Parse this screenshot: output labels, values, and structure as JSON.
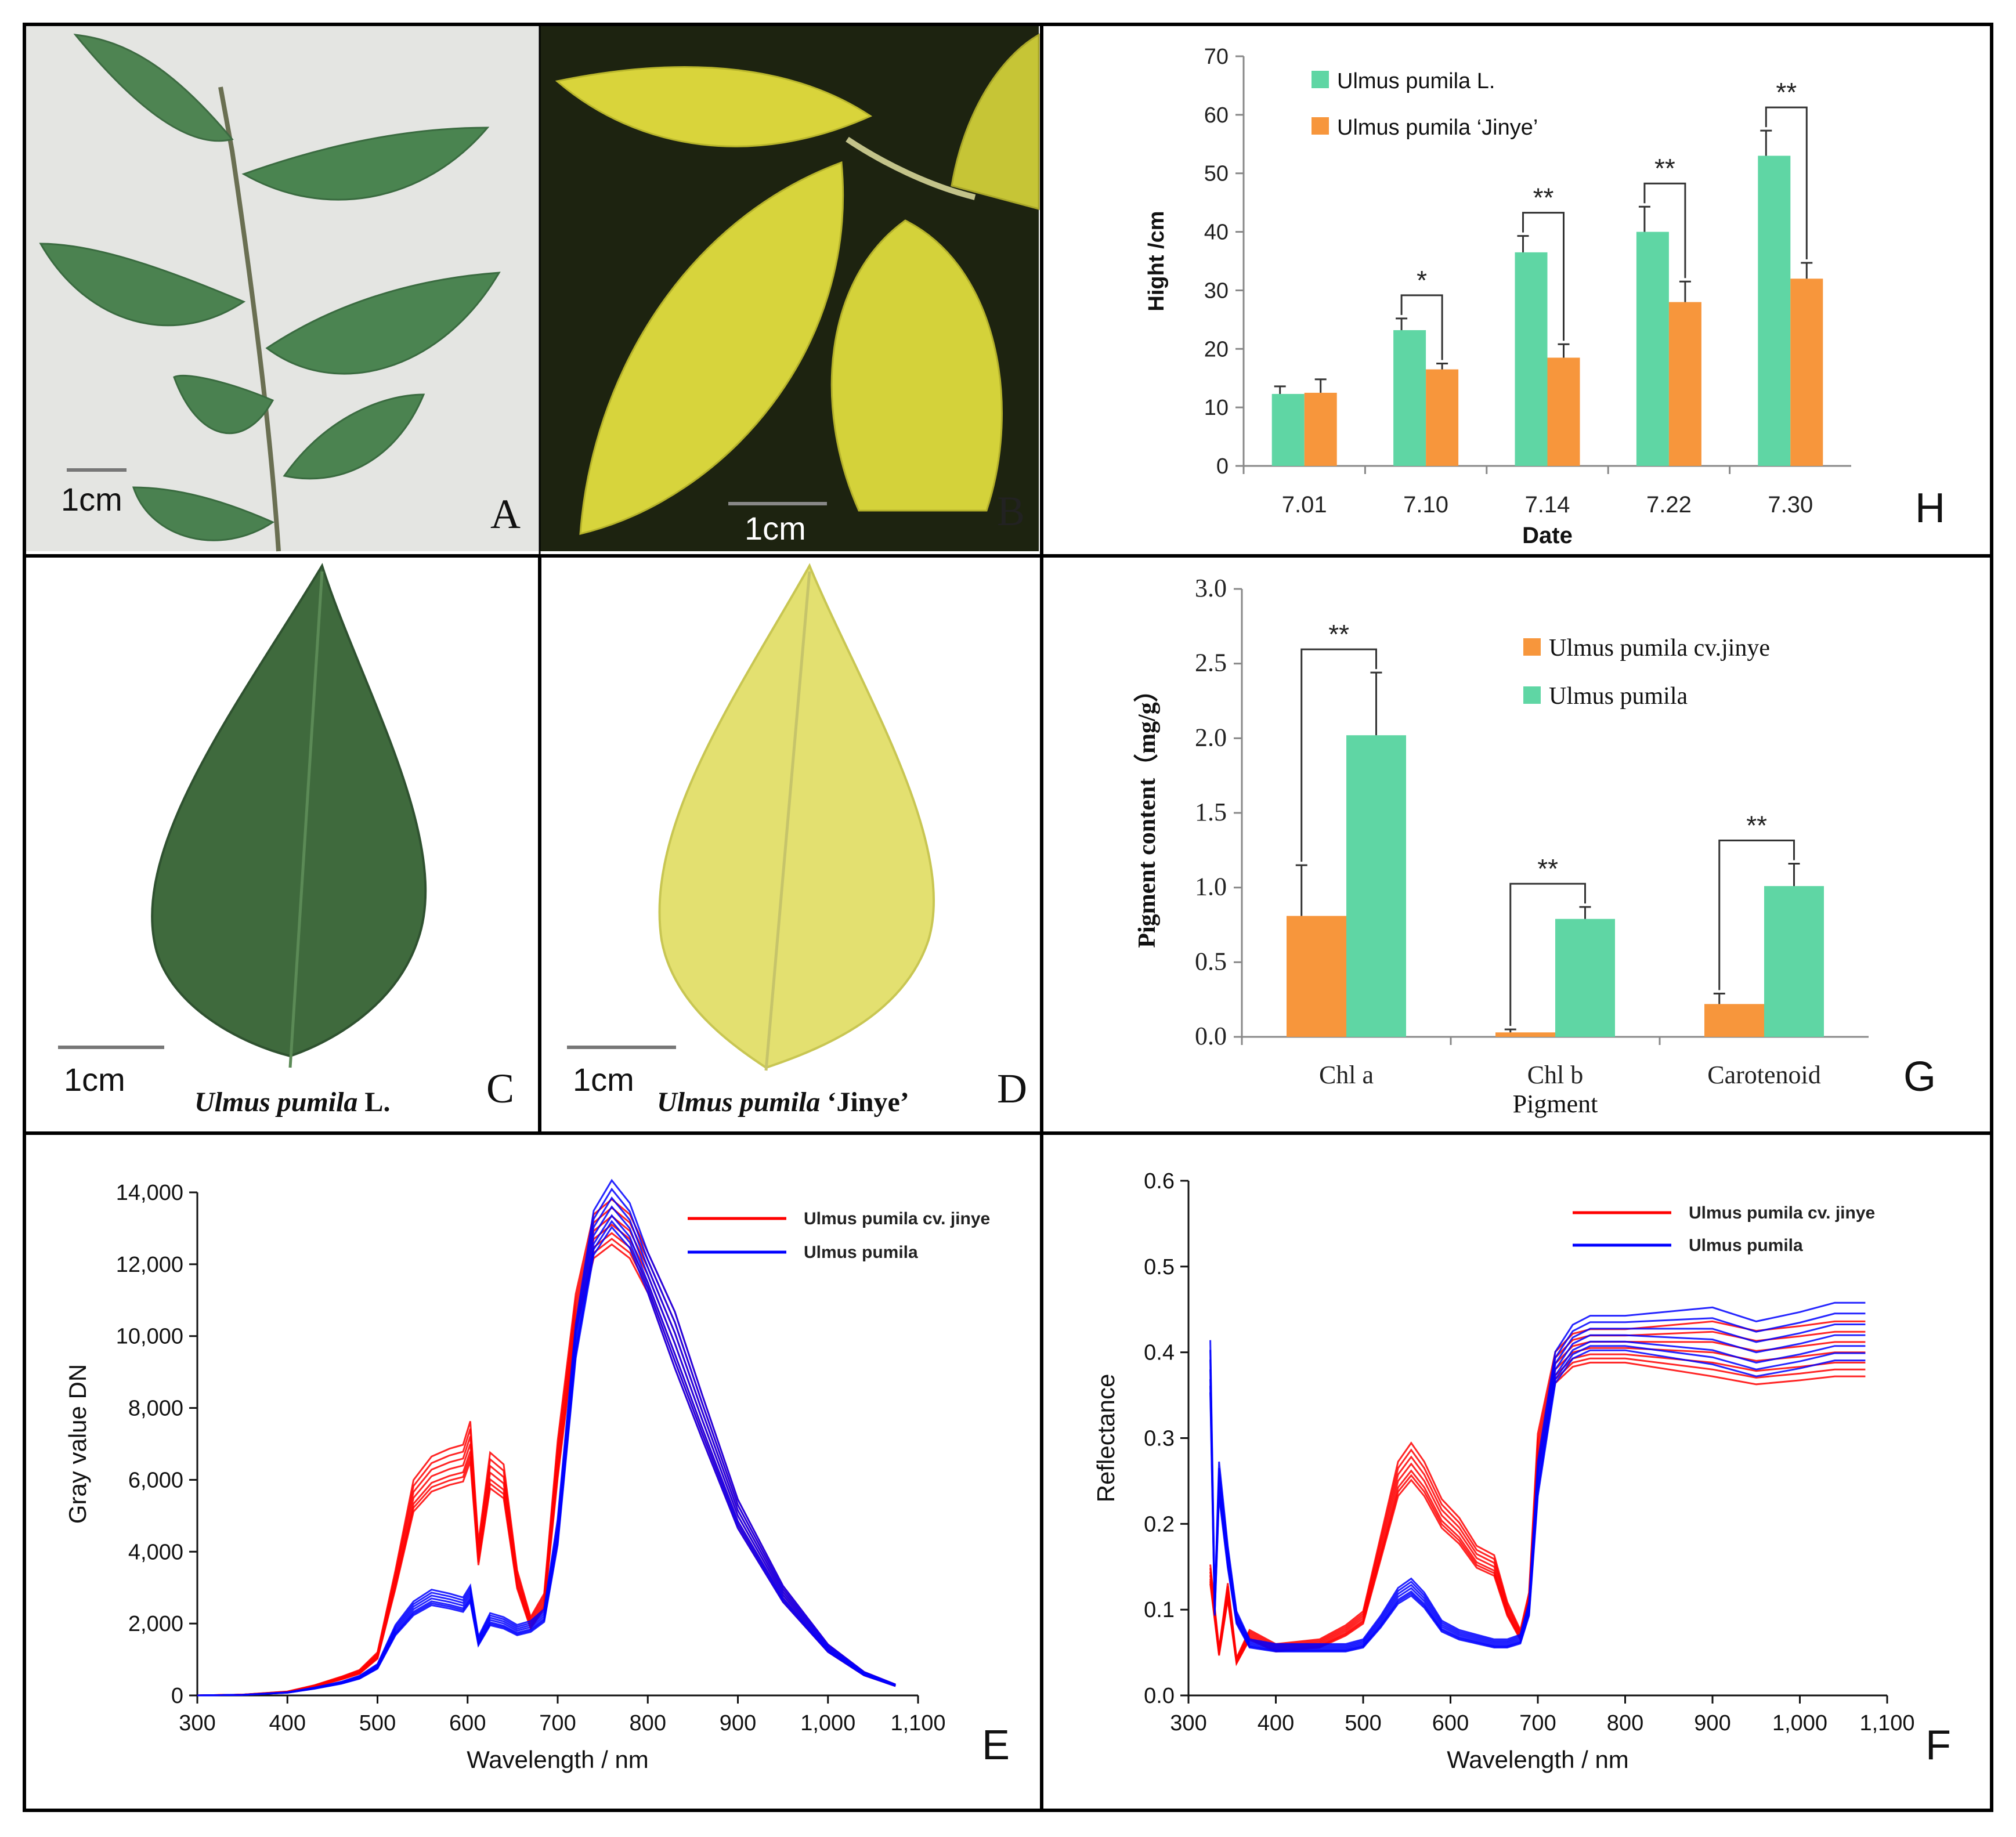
{
  "figure": {
    "panels": {
      "A": {
        "letter": "A",
        "scale": "1cm"
      },
      "B": {
        "letter": "B",
        "scale": "1cm"
      },
      "C": {
        "letter": "C",
        "scale": "1cm",
        "species": "Ulmus pumila",
        "authority": " L."
      },
      "D": {
        "letter": "D",
        "scale": "1cm",
        "species": "Ulmus pumila",
        "cultivar": " ‘Jinye’"
      },
      "E": {
        "letter": "E"
      },
      "F": {
        "letter": "F"
      },
      "G": {
        "letter": "G"
      },
      "H": {
        "letter": "H"
      }
    },
    "colors": {
      "green_leaf": "#4d7d52",
      "yellow_leaf": "#d8d43a",
      "teal": "#5fd6a4",
      "orange": "#f7963c",
      "red": "#ff0000",
      "blue": "#0000ff"
    }
  },
  "chart_data": [
    {
      "id": "H",
      "type": "bar",
      "title": "",
      "xlabel": "Date",
      "ylabel": "Hight /cm",
      "ylim": [
        0,
        70
      ],
      "yticks": [
        "0",
        "10",
        "20",
        "30",
        "40",
        "50",
        "60",
        "70"
      ],
      "categories": [
        "7.01",
        "7.10",
        "7.14",
        "7.22",
        "7.30"
      ],
      "series": [
        {
          "name": "Ulmus pumila L.",
          "color": "#5fd6a4",
          "values": [
            12.3,
            23.2,
            36.5,
            40.0,
            53.0
          ],
          "errors": [
            1.3,
            2.0,
            2.8,
            4.3,
            4.3
          ]
        },
        {
          "name": "Ulmus pumila ‘Jinye’",
          "color": "#f7963c",
          "values": [
            12.5,
            16.5,
            18.5,
            28.0,
            32.0
          ],
          "errors": [
            2.3,
            1.0,
            2.3,
            3.5,
            2.7
          ]
        }
      ],
      "significance": [
        "",
        "*",
        "**",
        "**",
        "**"
      ],
      "legend_position": "top-left"
    },
    {
      "id": "G",
      "type": "bar",
      "title": "",
      "xlabel": "Pigment",
      "ylabel": "Pigment content（mg/g）",
      "ylim": [
        0,
        3.0
      ],
      "yticks": [
        "0.0",
        "0.5",
        "1.0",
        "1.5",
        "2.0",
        "2.5",
        "3.0"
      ],
      "categories": [
        "Chl a",
        "Chl b",
        "Carotenoid"
      ],
      "series": [
        {
          "name": "Ulmus pumila cv.jinye",
          "color": "#f7963c",
          "values": [
            0.81,
            0.03,
            0.22
          ],
          "errors": [
            0.34,
            0.02,
            0.07
          ]
        },
        {
          "name": "Ulmus pumila",
          "color": "#5fd6a4",
          "values": [
            2.02,
            0.79,
            1.01
          ],
          "errors": [
            0.42,
            0.08,
            0.15
          ]
        }
      ],
      "significance": [
        "**",
        "**",
        "**"
      ],
      "legend_position": "top-right"
    },
    {
      "id": "E",
      "type": "line",
      "title": "",
      "xlabel": "Wavelength / nm",
      "ylabel": "Gray value  DN",
      "xlim": [
        300,
        1100
      ],
      "ylim": [
        0,
        14000
      ],
      "xticks": [
        "300",
        "400",
        "500",
        "600",
        "700",
        "800",
        "900",
        "1,000",
        "1,100"
      ],
      "yticks": [
        "0",
        "2,000",
        "4,000",
        "6,000",
        "8,000",
        "10,000",
        "12,000",
        "14,000"
      ],
      "series": [
        {
          "name": "Ulmus pumila cv. jinye",
          "color": "#ff0000",
          "x": [
            300,
            350,
            400,
            430,
            460,
            480,
            500,
            520,
            540,
            560,
            580,
            595,
            603,
            612,
            625,
            640,
            655,
            670,
            685,
            700,
            720,
            740,
            760,
            780,
            800,
            830,
            860,
            900,
            950,
            1000,
            1040,
            1075
          ],
          "y": [
            0,
            20,
            100,
            260,
            480,
            650,
            1100,
            3200,
            5500,
            6100,
            6300,
            6400,
            7000,
            3900,
            6200,
            5900,
            3200,
            2000,
            2600,
            6500,
            10600,
            12700,
            13100,
            12700,
            11700,
            9800,
            7700,
            5000,
            2800,
            1300,
            600,
            280
          ]
        },
        {
          "name": "Ulmus pumila",
          "color": "#0000ff",
          "x": [
            300,
            350,
            400,
            430,
            460,
            480,
            500,
            520,
            540,
            560,
            580,
            595,
            603,
            612,
            625,
            640,
            655,
            670,
            685,
            700,
            720,
            740,
            760,
            780,
            800,
            830,
            860,
            900,
            950,
            1000,
            1040,
            1075
          ],
          "y": [
            0,
            15,
            80,
            200,
            350,
            500,
            800,
            1800,
            2400,
            2700,
            2600,
            2500,
            2800,
            1500,
            2100,
            2000,
            1800,
            1900,
            2200,
            4500,
            9800,
            12800,
            13600,
            13000,
            11700,
            9800,
            7700,
            5000,
            2800,
            1300,
            600,
            280
          ]
        }
      ],
      "legend_position": "top-right"
    },
    {
      "id": "F",
      "type": "line",
      "title": "",
      "xlabel": "Wavelength / nm",
      "ylabel": "Reflectance",
      "xlim": [
        300,
        1100
      ],
      "ylim": [
        0,
        0.6
      ],
      "xticks": [
        "300",
        "400",
        "500",
        "600",
        "700",
        "800",
        "900",
        "1,000",
        "1,100"
      ],
      "yticks": [
        "0.0",
        "0.1",
        "0.2",
        "0.3",
        "0.4",
        "0.5",
        "0.6"
      ],
      "series": [
        {
          "name": "Ulmus pumila cv. jinye",
          "color": "#ff0000",
          "x": [
            325,
            335,
            345,
            355,
            370,
            400,
            450,
            480,
            500,
            520,
            540,
            555,
            570,
            590,
            610,
            630,
            650,
            665,
            680,
            690,
            700,
            720,
            740,
            760,
            800,
            900,
            950,
            1000,
            1040,
            1075
          ],
          "y": [
            0.14,
            0.05,
            0.12,
            0.04,
            0.07,
            0.055,
            0.06,
            0.075,
            0.09,
            0.17,
            0.25,
            0.27,
            0.25,
            0.21,
            0.19,
            0.16,
            0.15,
            0.1,
            0.07,
            0.11,
            0.28,
            0.38,
            0.4,
            0.405,
            0.405,
            0.4,
            0.39,
            0.395,
            0.4,
            0.4
          ]
        },
        {
          "name": "Ulmus pumila",
          "color": "#0000ff",
          "x": [
            325,
            330,
            335,
            345,
            355,
            370,
            400,
            450,
            480,
            500,
            520,
            540,
            555,
            570,
            590,
            610,
            630,
            650,
            665,
            680,
            690,
            700,
            720,
            740,
            760,
            800,
            900,
            950,
            1000,
            1040,
            1075
          ],
          "y": [
            0.38,
            0.1,
            0.25,
            0.16,
            0.09,
            0.06,
            0.055,
            0.055,
            0.055,
            0.06,
            0.085,
            0.115,
            0.125,
            0.11,
            0.08,
            0.07,
            0.065,
            0.06,
            0.06,
            0.065,
            0.1,
            0.25,
            0.38,
            0.41,
            0.42,
            0.42,
            0.415,
            0.4,
            0.41,
            0.42,
            0.42
          ]
        }
      ],
      "legend_position": "top-right"
    }
  ]
}
